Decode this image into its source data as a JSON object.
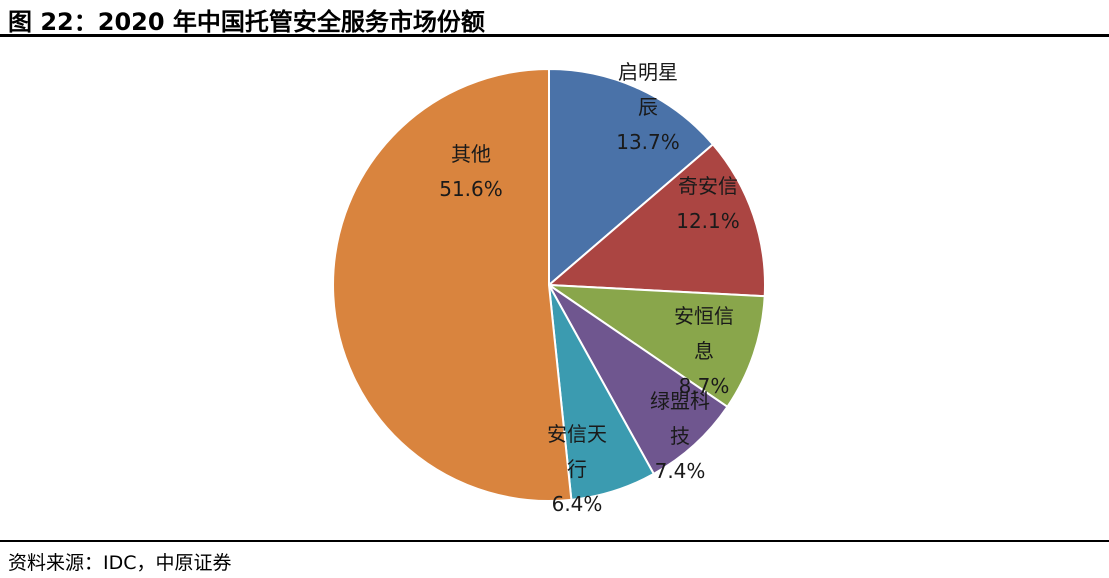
{
  "figure": {
    "title": "图 22：2020 年中国托管安全服务市场份额",
    "source": "资料来源：IDC，中原证券"
  },
  "chart_data": {
    "type": "pie",
    "title": "",
    "unit": "%",
    "start": "12 o'clock",
    "direction": "clockwise",
    "legend": "none",
    "slices": [
      {
        "label_lines": [
          "启明星",
          "辰"
        ],
        "label": "启明星辰",
        "value": 13.7,
        "value_label": "13.7%",
        "color": "#4a72a8"
      },
      {
        "label_lines": [
          "奇安信"
        ],
        "label": "奇安信",
        "value": 12.1,
        "value_label": "12.1%",
        "color": "#ab4542"
      },
      {
        "label_lines": [
          "安恒信",
          "息"
        ],
        "label": "安恒信息",
        "value": 8.7,
        "value_label": "8.7%",
        "color": "#89a64b"
      },
      {
        "label_lines": [
          "绿盟科",
          "技"
        ],
        "label": "绿盟科技",
        "value": 7.4,
        "value_label": "7.4%",
        "color": "#6f568f"
      },
      {
        "label_lines": [
          "安信天",
          "行"
        ],
        "label": "安信天行",
        "value": 6.4,
        "value_label": "6.4%",
        "color": "#3b9bb0"
      },
      {
        "label_lines": [
          "其他"
        ],
        "label": "其他",
        "value": 51.6,
        "value_label": "51.6%",
        "color": "#d9843e"
      }
    ]
  }
}
